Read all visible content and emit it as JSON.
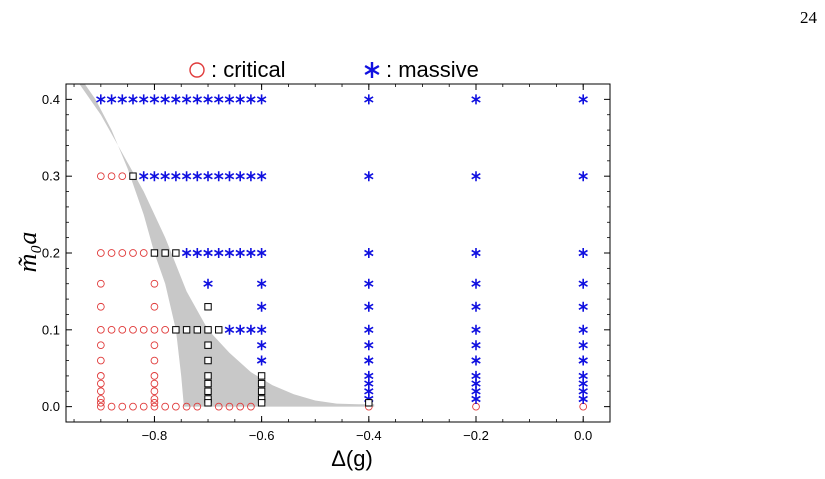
{
  "page": {
    "number": "24"
  },
  "chart_data": {
    "type": "scatter",
    "title": "",
    "xlabel": "Δ(g)",
    "ylabel": "m̃₀a",
    "xlim": [
      -0.965,
      0.05
    ],
    "ylim": [
      -0.02,
      0.42
    ],
    "x_ticks": [
      -0.8,
      -0.6,
      -0.4,
      -0.2,
      0.0
    ],
    "x_tick_labels": [
      "−0.8",
      "−0.6",
      "−0.4",
      "−0.2",
      "0.0"
    ],
    "y_ticks": [
      0.0,
      0.1,
      0.2,
      0.3,
      0.4
    ],
    "y_tick_labels": [
      "0.0",
      "0.1",
      "0.2",
      "0.3",
      "0.4"
    ],
    "grid": false,
    "legend": {
      "placement": "top-center",
      "items": [
        {
          "symbol": "○",
          "label": ": critical",
          "color": "#e03a3a"
        },
        {
          "symbol": "✶",
          "label": ": massive",
          "color": "#1010e0"
        }
      ]
    },
    "series": [
      {
        "name": "critical",
        "marker": "circle",
        "color": "#e03a3a",
        "points": [
          [
            -0.9,
            0.3
          ],
          [
            -0.88,
            0.3
          ],
          [
            -0.86,
            0.3
          ],
          [
            -0.9,
            0.2
          ],
          [
            -0.88,
            0.2
          ],
          [
            -0.86,
            0.2
          ],
          [
            -0.84,
            0.2
          ],
          [
            -0.82,
            0.2
          ],
          [
            -0.9,
            0.16
          ],
          [
            -0.8,
            0.16
          ],
          [
            -0.9,
            0.13
          ],
          [
            -0.8,
            0.13
          ],
          [
            -0.9,
            0.1
          ],
          [
            -0.88,
            0.1
          ],
          [
            -0.86,
            0.1
          ],
          [
            -0.84,
            0.1
          ],
          [
            -0.82,
            0.1
          ],
          [
            -0.8,
            0.1
          ],
          [
            -0.78,
            0.1
          ],
          [
            -0.9,
            0.08
          ],
          [
            -0.8,
            0.08
          ],
          [
            -0.9,
            0.06
          ],
          [
            -0.8,
            0.06
          ],
          [
            -0.9,
            0.04
          ],
          [
            -0.8,
            0.04
          ],
          [
            -0.9,
            0.03
          ],
          [
            -0.8,
            0.03
          ],
          [
            -0.9,
            0.02
          ],
          [
            -0.8,
            0.02
          ],
          [
            -0.9,
            0.01
          ],
          [
            -0.8,
            0.01
          ],
          [
            -0.9,
            0.005
          ],
          [
            -0.8,
            0.005
          ],
          [
            -0.9,
            0.0
          ],
          [
            -0.88,
            0.0
          ],
          [
            -0.86,
            0.0
          ],
          [
            -0.84,
            0.0
          ],
          [
            -0.82,
            0.0
          ],
          [
            -0.8,
            0.0
          ],
          [
            -0.78,
            0.0
          ],
          [
            -0.76,
            0.0
          ],
          [
            -0.74,
            0.0
          ],
          [
            -0.72,
            0.0
          ],
          [
            -0.68,
            0.0
          ],
          [
            -0.66,
            0.0
          ],
          [
            -0.64,
            0.0
          ],
          [
            -0.62,
            0.0
          ],
          [
            -0.4,
            0.0
          ],
          [
            -0.2,
            0.0
          ],
          [
            0.0,
            0.0
          ]
        ]
      },
      {
        "name": "massive",
        "marker": "star",
        "color": "#1010e0",
        "points": [
          [
            -0.9,
            0.4
          ],
          [
            -0.88,
            0.4
          ],
          [
            -0.86,
            0.4
          ],
          [
            -0.84,
            0.4
          ],
          [
            -0.82,
            0.4
          ],
          [
            -0.8,
            0.4
          ],
          [
            -0.78,
            0.4
          ],
          [
            -0.76,
            0.4
          ],
          [
            -0.74,
            0.4
          ],
          [
            -0.72,
            0.4
          ],
          [
            -0.7,
            0.4
          ],
          [
            -0.68,
            0.4
          ],
          [
            -0.66,
            0.4
          ],
          [
            -0.64,
            0.4
          ],
          [
            -0.62,
            0.4
          ],
          [
            -0.6,
            0.4
          ],
          [
            -0.82,
            0.3
          ],
          [
            -0.8,
            0.3
          ],
          [
            -0.78,
            0.3
          ],
          [
            -0.76,
            0.3
          ],
          [
            -0.74,
            0.3
          ],
          [
            -0.72,
            0.3
          ],
          [
            -0.7,
            0.3
          ],
          [
            -0.68,
            0.3
          ],
          [
            -0.66,
            0.3
          ],
          [
            -0.64,
            0.3
          ],
          [
            -0.62,
            0.3
          ],
          [
            -0.6,
            0.3
          ],
          [
            -0.74,
            0.2
          ],
          [
            -0.72,
            0.2
          ],
          [
            -0.7,
            0.2
          ],
          [
            -0.68,
            0.2
          ],
          [
            -0.66,
            0.2
          ],
          [
            -0.64,
            0.2
          ],
          [
            -0.62,
            0.2
          ],
          [
            -0.6,
            0.2
          ],
          [
            -0.7,
            0.16
          ],
          [
            -0.6,
            0.16
          ],
          [
            -0.6,
            0.13
          ],
          [
            -0.66,
            0.1
          ],
          [
            -0.64,
            0.1
          ],
          [
            -0.62,
            0.1
          ],
          [
            -0.6,
            0.1
          ],
          [
            -0.6,
            0.08
          ],
          [
            -0.6,
            0.06
          ],
          [
            -0.4,
            0.4
          ],
          [
            -0.4,
            0.3
          ],
          [
            -0.4,
            0.2
          ],
          [
            -0.4,
            0.16
          ],
          [
            -0.4,
            0.13
          ],
          [
            -0.4,
            0.1
          ],
          [
            -0.4,
            0.08
          ],
          [
            -0.4,
            0.06
          ],
          [
            -0.4,
            0.04
          ],
          [
            -0.4,
            0.03
          ],
          [
            -0.4,
            0.02
          ],
          [
            -0.4,
            0.01
          ],
          [
            -0.2,
            0.4
          ],
          [
            -0.2,
            0.3
          ],
          [
            -0.2,
            0.2
          ],
          [
            -0.2,
            0.16
          ],
          [
            -0.2,
            0.13
          ],
          [
            -0.2,
            0.1
          ],
          [
            -0.2,
            0.08
          ],
          [
            -0.2,
            0.06
          ],
          [
            -0.2,
            0.04
          ],
          [
            -0.2,
            0.03
          ],
          [
            -0.2,
            0.02
          ],
          [
            -0.2,
            0.01
          ],
          [
            0.0,
            0.4
          ],
          [
            0.0,
            0.3
          ],
          [
            0.0,
            0.2
          ],
          [
            0.0,
            0.16
          ],
          [
            0.0,
            0.13
          ],
          [
            0.0,
            0.1
          ],
          [
            0.0,
            0.08
          ],
          [
            0.0,
            0.06
          ],
          [
            0.0,
            0.04
          ],
          [
            0.0,
            0.03
          ],
          [
            0.0,
            0.02
          ],
          [
            0.0,
            0.01
          ]
        ]
      },
      {
        "name": "boundary",
        "marker": "square",
        "color": "#000000",
        "points": [
          [
            -0.84,
            0.3
          ],
          [
            -0.8,
            0.2
          ],
          [
            -0.78,
            0.2
          ],
          [
            -0.76,
            0.2
          ],
          [
            -0.7,
            0.13
          ],
          [
            -0.76,
            0.1
          ],
          [
            -0.74,
            0.1
          ],
          [
            -0.72,
            0.1
          ],
          [
            -0.7,
            0.1
          ],
          [
            -0.68,
            0.1
          ],
          [
            -0.7,
            0.08
          ],
          [
            -0.7,
            0.06
          ],
          [
            -0.7,
            0.04
          ],
          [
            -0.6,
            0.04
          ],
          [
            -0.7,
            0.03
          ],
          [
            -0.6,
            0.03
          ],
          [
            -0.7,
            0.02
          ],
          [
            -0.6,
            0.02
          ],
          [
            -0.7,
            0.01
          ],
          [
            -0.6,
            0.01
          ],
          [
            -0.7,
            0.005
          ],
          [
            -0.6,
            0.005
          ],
          [
            -0.4,
            0.005
          ]
        ]
      }
    ],
    "band": {
      "color": "#c8c8c8",
      "upper": [
        [
          -0.94,
          0.42
        ],
        [
          -0.9,
          0.38
        ],
        [
          -0.86,
          0.33
        ],
        [
          -0.82,
          0.28
        ],
        [
          -0.78,
          0.22
        ],
        [
          -0.74,
          0.15
        ],
        [
          -0.7,
          0.1
        ],
        [
          -0.66,
          0.07
        ],
        [
          -0.62,
          0.045
        ],
        [
          -0.58,
          0.028
        ],
        [
          -0.54,
          0.016
        ],
        [
          -0.5,
          0.008
        ],
        [
          -0.46,
          0.004
        ],
        [
          -0.42,
          0.003
        ],
        [
          -0.39,
          0.003
        ]
      ],
      "lower": [
        [
          -0.39,
          0.0
        ],
        [
          -0.42,
          0.0
        ],
        [
          -0.5,
          0.0
        ],
        [
          -0.6,
          0.0
        ],
        [
          -0.7,
          0.0
        ],
        [
          -0.745,
          0.0
        ],
        [
          -0.75,
          0.04
        ],
        [
          -0.76,
          0.1
        ],
        [
          -0.78,
          0.16
        ],
        [
          -0.8,
          0.2
        ],
        [
          -0.82,
          0.25
        ],
        [
          -0.85,
          0.31
        ],
        [
          -0.88,
          0.36
        ],
        [
          -0.91,
          0.4
        ],
        [
          -0.93,
          0.42
        ]
      ]
    }
  }
}
